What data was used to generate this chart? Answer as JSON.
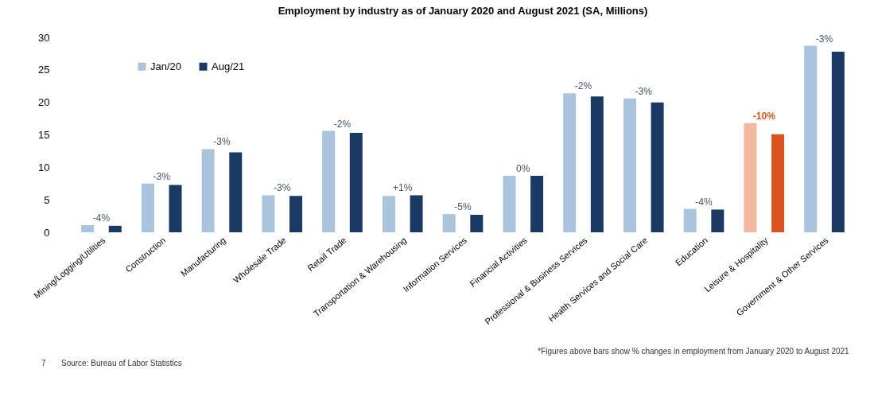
{
  "chart_data": {
    "type": "bar",
    "title": "Employment by industry as of January 2020 and August 2021 (SA, Millions)",
    "categories": [
      "Mining/Logging/Utilities",
      "Construction",
      "Manufacturing",
      "Wholesale Trade",
      "Retail Trade",
      "Transportation & Warehousing",
      "Information Services",
      "Financial Activities",
      "Professional & Business Services",
      "Health Services and Social Care",
      "Education",
      "Leisure & Hospitality",
      "Government & Other Services"
    ],
    "series": [
      {
        "name": "Jan/20",
        "color": "#a9c4dc",
        "colors": [
          "#a9c4dc",
          "#a9c4dc",
          "#a9c4dc",
          "#a9c4dc",
          "#a9c4dc",
          "#a9c4dc",
          "#a9c4dc",
          "#a9c4dc",
          "#a9c4dc",
          "#a9c4dc",
          "#a9c4dc",
          "#f2b8a0",
          "#a9c4dc"
        ],
        "values": [
          1.1,
          7.5,
          12.8,
          5.7,
          15.6,
          5.6,
          2.8,
          8.7,
          21.4,
          20.6,
          3.6,
          16.8,
          28.7
        ]
      },
      {
        "name": "Aug/21",
        "color": "#1b3a63",
        "colors": [
          "#1b3a63",
          "#1b3a63",
          "#1b3a63",
          "#1b3a63",
          "#1b3a63",
          "#1b3a63",
          "#1b3a63",
          "#1b3a63",
          "#1b3a63",
          "#1b3a63",
          "#1b3a63",
          "#d9541e",
          "#1b3a63"
        ],
        "values": [
          1.0,
          7.3,
          12.3,
          5.6,
          15.3,
          5.7,
          2.7,
          8.7,
          20.9,
          20.0,
          3.5,
          15.1,
          27.8
        ]
      }
    ],
    "ylim": [
      0,
      30
    ],
    "yticks": [
      0,
      5,
      10,
      15,
      20,
      25,
      30
    ],
    "grid": false,
    "legend": "top left",
    "annotations": [
      "-4%",
      "-3%",
      "-3%",
      "-3%",
      "-2%",
      "+1%",
      "-5%",
      "0%",
      "-2%",
      "-3%",
      "-4%",
      "-10%",
      "-3%",
      "7",
      "Source: Bureau of Labor Statistics",
      "*Figures above bars show % changes in employment from January 2020 to August 2021"
    ]
  }
}
